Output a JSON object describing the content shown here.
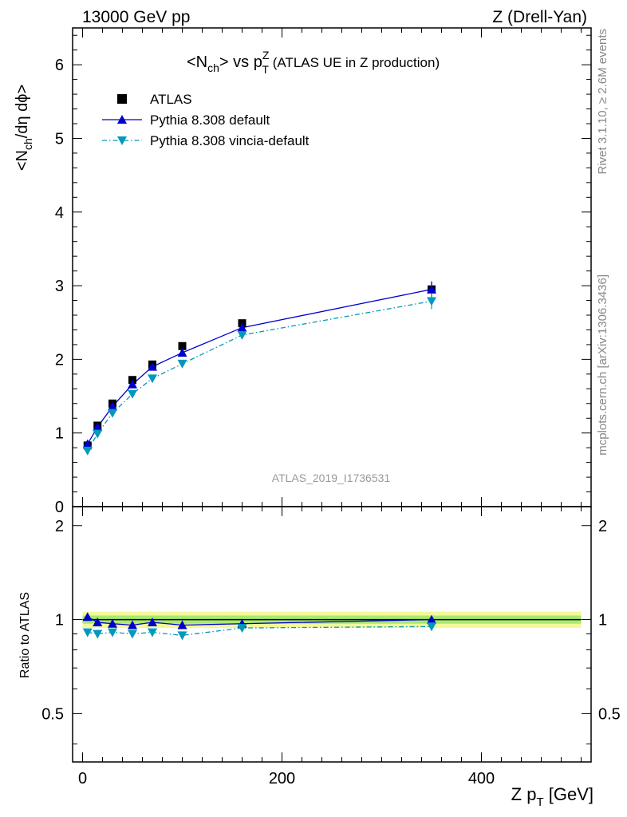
{
  "header": {
    "energy_label": "13000 GeV pp",
    "process_label": "Z (Drell-Yan)"
  },
  "chart_data": {
    "type": "scatter",
    "title_main": "<N",
    "title_main_sub": "ch",
    "title_mid": "> vs p",
    "title_sup": "Z",
    "title_sub2": "T",
    "title_tail": " (ATLAS UE in Z production)",
    "ylabel_top": "<N",
    "ylabel_top_sub": "ch",
    "ylabel_top_tail": "/dη dϕ>",
    "ylabel_ratio": "Ratio to ATLAS",
    "xlabel": "Z p",
    "xlabel_sub": "T",
    "xlabel_tail": " [GeV]",
    "analysis_id": "ATLAS_2019_I1736531",
    "side_label_rivet": "Rivet 3.1.10, ≥ 2.6M events",
    "side_label_mcplots": "mcplots.cern.ch [arXiv:1306.3436]",
    "xlim": [
      -10,
      510
    ],
    "ylim_top": [
      0,
      6.5
    ],
    "ylim_ratio": [
      0.35,
      2.3
    ],
    "x_ticks": [
      0,
      200,
      400
    ],
    "y_ticks_top": [
      0,
      1,
      2,
      3,
      4,
      5,
      6
    ],
    "y_ticks_ratio": [
      0.5,
      1,
      2
    ],
    "legend_position": "top-left",
    "x": [
      5,
      15,
      30,
      50,
      70,
      100,
      160,
      350
    ],
    "series": [
      {
        "name": "ATLAS",
        "marker": "square",
        "color": "#000000",
        "values": [
          0.83,
          1.1,
          1.4,
          1.72,
          1.93,
          2.18,
          2.49,
          2.95
        ]
      },
      {
        "name": "Pythia 8.308 default",
        "marker": "triangle-up",
        "color": "#0000cc",
        "line": "solid",
        "values": [
          0.85,
          1.08,
          1.36,
          1.66,
          1.9,
          2.09,
          2.43,
          2.95
        ]
      },
      {
        "name": "Pythia 8.308 vincia-default",
        "marker": "triangle-down",
        "color": "#0099bb",
        "line": "dashdot",
        "values": [
          0.76,
          0.99,
          1.27,
          1.53,
          1.74,
          1.94,
          2.33,
          2.79
        ]
      }
    ],
    "ratio_series": [
      {
        "name": "Pythia 8.308 default",
        "values": [
          1.02,
          0.98,
          0.97,
          0.96,
          0.98,
          0.96,
          0.97,
          1.0
        ]
      },
      {
        "name": "Pythia 8.308 vincia-default",
        "values": [
          0.91,
          0.9,
          0.91,
          0.9,
          0.91,
          0.89,
          0.94,
          0.95
        ]
      }
    ],
    "ratio_band": {
      "inner": 0.03,
      "outer": 0.06
    },
    "colors": {
      "band_outer": "#f3f99a",
      "band_inner": "#a8e96f"
    }
  }
}
